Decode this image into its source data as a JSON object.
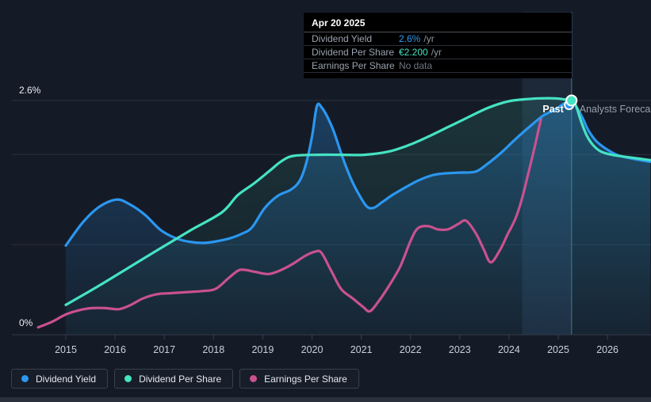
{
  "tooltip": {
    "date": "Apr 20 2025",
    "rows": [
      {
        "label": "Dividend Yield",
        "value": "2.6%",
        "suffix": "/yr",
        "value_color": "#2d9cf4"
      },
      {
        "label": "Dividend Per Share",
        "value": "€2.200",
        "suffix": "/yr",
        "value_color": "#45e3c3"
      },
      {
        "label": "Earnings Per Share",
        "value": "No data",
        "suffix": "",
        "value_color": "#6e7681"
      }
    ]
  },
  "legend": {
    "items": [
      {
        "label": "Dividend Yield",
        "color": "#2b97f1"
      },
      {
        "label": "Dividend Per Share",
        "color": "#45e3c3"
      },
      {
        "label": "Earnings Per Share",
        "color": "#c9518f"
      }
    ]
  },
  "chart_data": {
    "type": "line",
    "title": "",
    "y_axis": {
      "top_label": "2.6%",
      "bottom_label": "0%",
      "range_pct": [
        0,
        2.6
      ],
      "gridlines_pct": [
        2.6,
        2.0,
        1.0
      ]
    },
    "x_axis": {
      "ticks": [
        "2015",
        "2016",
        "2017",
        "2018",
        "2019",
        "2020",
        "2021",
        "2022",
        "2023",
        "2024",
        "2025",
        "2026"
      ]
    },
    "divider": {
      "year": 2025.27,
      "past_label": "Past",
      "forecast_label": "Analysts Forecast"
    },
    "highlight_band": {
      "from_year": 2024.27,
      "to_year": 2025.27
    },
    "markers": [
      {
        "series": "Dividend Yield",
        "year": 2025.22,
        "value": 2.55,
        "unit": "pct",
        "color": "#2b97f1"
      },
      {
        "series": "Dividend Per Share",
        "year": 2025.27,
        "value": 2.2,
        "unit": "eur",
        "color": "#45e3c3"
      }
    ],
    "series": [
      {
        "name": "Dividend Yield",
        "color": "#2b97f1",
        "unit": "pct",
        "area": true,
        "points": [
          [
            2015.0,
            0.99
          ],
          [
            2015.35,
            1.25
          ],
          [
            2015.68,
            1.42
          ],
          [
            2016.03,
            1.5
          ],
          [
            2016.29,
            1.45
          ],
          [
            2016.61,
            1.33
          ],
          [
            2016.93,
            1.16
          ],
          [
            2017.24,
            1.07
          ],
          [
            2017.53,
            1.03
          ],
          [
            2017.82,
            1.02
          ],
          [
            2018.09,
            1.04
          ],
          [
            2018.33,
            1.07
          ],
          [
            2018.57,
            1.12
          ],
          [
            2018.78,
            1.19
          ],
          [
            2019.03,
            1.4
          ],
          [
            2019.3,
            1.54
          ],
          [
            2019.57,
            1.61
          ],
          [
            2019.75,
            1.71
          ],
          [
            2019.88,
            1.9
          ],
          [
            2020.0,
            2.2
          ],
          [
            2020.1,
            2.54
          ],
          [
            2020.2,
            2.52
          ],
          [
            2020.31,
            2.42
          ],
          [
            2020.44,
            2.26
          ],
          [
            2020.62,
            1.97
          ],
          [
            2020.8,
            1.72
          ],
          [
            2020.96,
            1.55
          ],
          [
            2021.12,
            1.42
          ],
          [
            2021.26,
            1.41
          ],
          [
            2021.42,
            1.47
          ],
          [
            2021.63,
            1.55
          ],
          [
            2021.88,
            1.63
          ],
          [
            2022.15,
            1.71
          ],
          [
            2022.44,
            1.77
          ],
          [
            2022.68,
            1.79
          ],
          [
            2023.0,
            1.8
          ],
          [
            2023.32,
            1.81
          ],
          [
            2023.57,
            1.9
          ],
          [
            2023.84,
            2.02
          ],
          [
            2024.13,
            2.17
          ],
          [
            2024.42,
            2.31
          ],
          [
            2024.69,
            2.43
          ],
          [
            2024.94,
            2.5
          ],
          [
            2025.13,
            2.57
          ],
          [
            2025.27,
            2.6
          ],
          [
            2025.38,
            2.52
          ],
          [
            2025.5,
            2.4
          ],
          [
            2025.61,
            2.27
          ],
          [
            2025.77,
            2.15
          ],
          [
            2025.98,
            2.06
          ],
          [
            2026.22,
            1.99
          ],
          [
            2026.55,
            1.95
          ],
          [
            2026.87,
            1.92
          ]
        ]
      },
      {
        "name": "Dividend Per Share",
        "color": "#45e3c3",
        "unit": "eur",
        "area": true,
        "points": [
          [
            2015.0,
            0.28
          ],
          [
            2015.6,
            0.44
          ],
          [
            2016.24,
            0.62
          ],
          [
            2016.88,
            0.8
          ],
          [
            2017.53,
            0.98
          ],
          [
            2018.17,
            1.15
          ],
          [
            2018.49,
            1.31
          ],
          [
            2018.82,
            1.42
          ],
          [
            2019.14,
            1.54
          ],
          [
            2019.38,
            1.63
          ],
          [
            2019.62,
            1.68
          ],
          [
            2020.1,
            1.69
          ],
          [
            2020.59,
            1.69
          ],
          [
            2021.07,
            1.69
          ],
          [
            2021.55,
            1.72
          ],
          [
            2021.96,
            1.78
          ],
          [
            2022.36,
            1.86
          ],
          [
            2022.76,
            1.95
          ],
          [
            2023.16,
            2.04
          ],
          [
            2023.57,
            2.13
          ],
          [
            2023.97,
            2.19
          ],
          [
            2024.29,
            2.21
          ],
          [
            2024.61,
            2.22
          ],
          [
            2024.94,
            2.22
          ],
          [
            2025.13,
            2.21
          ],
          [
            2025.27,
            2.2
          ],
          [
            2025.36,
            2.15
          ],
          [
            2025.46,
            2.01
          ],
          [
            2025.58,
            1.87
          ],
          [
            2025.71,
            1.78
          ],
          [
            2025.87,
            1.72
          ],
          [
            2026.09,
            1.69
          ],
          [
            2026.38,
            1.67
          ],
          [
            2026.87,
            1.64
          ]
        ]
      },
      {
        "name": "Earnings Per Share",
        "color": "#c9518f",
        "unit": "eur",
        "area": false,
        "points": [
          [
            2014.44,
            0.07
          ],
          [
            2014.71,
            0.12
          ],
          [
            2015.0,
            0.19
          ],
          [
            2015.27,
            0.23
          ],
          [
            2015.52,
            0.25
          ],
          [
            2015.81,
            0.25
          ],
          [
            2016.08,
            0.24
          ],
          [
            2016.32,
            0.28
          ],
          [
            2016.56,
            0.34
          ],
          [
            2016.84,
            0.38
          ],
          [
            2017.13,
            0.39
          ],
          [
            2017.45,
            0.4
          ],
          [
            2017.77,
            0.41
          ],
          [
            2018.04,
            0.43
          ],
          [
            2018.3,
            0.53
          ],
          [
            2018.49,
            0.6
          ],
          [
            2018.62,
            0.61
          ],
          [
            2018.85,
            0.59
          ],
          [
            2019.11,
            0.57
          ],
          [
            2019.33,
            0.6
          ],
          [
            2019.59,
            0.66
          ],
          [
            2019.86,
            0.74
          ],
          [
            2020.06,
            0.78
          ],
          [
            2020.19,
            0.77
          ],
          [
            2020.39,
            0.6
          ],
          [
            2020.59,
            0.43
          ],
          [
            2020.83,
            0.34
          ],
          [
            2021.04,
            0.26
          ],
          [
            2021.17,
            0.22
          ],
          [
            2021.33,
            0.3
          ],
          [
            2021.55,
            0.45
          ],
          [
            2021.79,
            0.64
          ],
          [
            2022.0,
            0.88
          ],
          [
            2022.15,
            1.0
          ],
          [
            2022.36,
            1.02
          ],
          [
            2022.55,
            0.99
          ],
          [
            2022.76,
            0.99
          ],
          [
            2022.97,
            1.04
          ],
          [
            2023.13,
            1.07
          ],
          [
            2023.33,
            0.95
          ],
          [
            2023.49,
            0.8
          ],
          [
            2023.63,
            0.68
          ],
          [
            2023.81,
            0.79
          ],
          [
            2023.97,
            0.94
          ],
          [
            2024.13,
            1.09
          ],
          [
            2024.26,
            1.27
          ],
          [
            2024.39,
            1.51
          ],
          [
            2024.52,
            1.76
          ],
          [
            2024.65,
            2.03
          ]
        ]
      }
    ]
  }
}
